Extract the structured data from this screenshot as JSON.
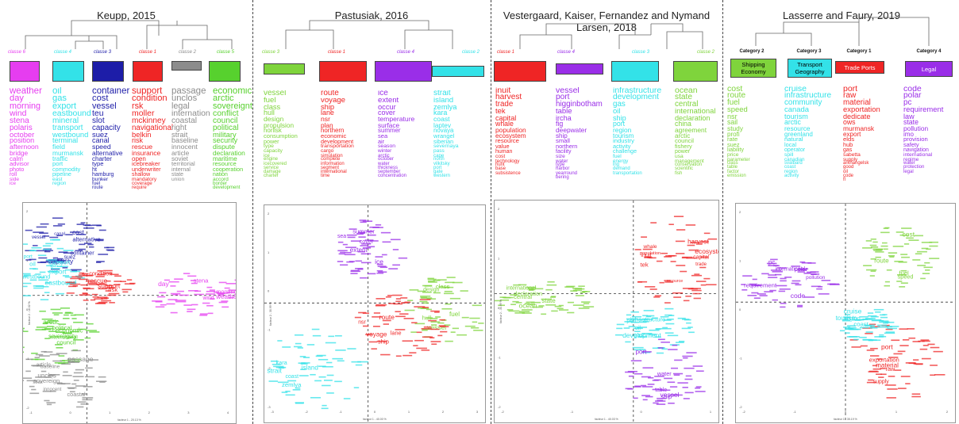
{
  "figure": {
    "panels": [
      {
        "title": "Keupp, 2015",
        "classes": [
          {
            "label": "classe 6",
            "color": "#e63df0",
            "pct": "",
            "words": [
              "weather",
              "day",
              "morning",
              "wind",
              "stena",
              "polaris",
              "october",
              "position",
              "afternoon",
              "bridge",
              "calm",
              "advisor",
              "photo",
              "roll",
              "side",
              "ice"
            ]
          },
          {
            "label": "classe 4",
            "color": "#33e2e8",
            "pct": "",
            "words": [
              "oil",
              "gas",
              "export",
              "eastbound",
              "mineral",
              "transport",
              "westbound",
              "terminal",
              "field",
              "murmansk",
              "traffic",
              "port",
              "commodity",
              "pipeline",
              "east",
              "region"
            ]
          },
          {
            "label": "classe 3",
            "color": "#1d1da8",
            "pct": "",
            "words": [
              "container",
              "cost",
              "vessel",
              "teu",
              "slot",
              "capacity",
              "suez",
              "canal",
              "speed",
              "alternative",
              "charter",
              "type",
              "ht",
              "hamburg",
              "bunker",
              "fuel",
              "route"
            ]
          },
          {
            "label": "classe 1",
            "color": "#ef2525",
            "pct": "",
            "words": [
              "support",
              "condition",
              "rsk",
              "moller",
              "mckinney",
              "navigational",
              "belkin",
              "risk",
              "rescue",
              "insurance",
              "open",
              "icebreaker",
              "underwriter",
              "shallow",
              "mandatory",
              "coverage",
              "require"
            ]
          },
          {
            "label": "classe 2",
            "color": "#8c8c8c",
            "pct": "",
            "words": [
              "passage",
              "unclos",
              "legal",
              "internation",
              "coastal",
              "right",
              "strait",
              "baseline",
              "innocent",
              "article",
              "soviet",
              "territorial",
              "internal",
              "state",
              "union"
            ]
          },
          {
            "label": "classe 5",
            "color": "#57d12e",
            "pct": "",
            "words": [
              "economic",
              "arctic",
              "sovereignt",
              "conflict",
              "council",
              "political",
              "military",
              "security",
              "dispute",
              "declaration",
              "maritime",
              "resource",
              "cooperation",
              "nation",
              "accord",
              "border",
              "development"
            ]
          }
        ],
        "axis": {
          "xlabel": "facteur 1 - 20.13 %",
          "ylabel": "facteur 2 - 18.02 %",
          "xticks": [
            "-1",
            "0",
            "1",
            "2",
            "3",
            "4"
          ],
          "yticks": [
            "2",
            "1",
            "0",
            "-1",
            "-2"
          ]
        },
        "clusters": [
          {
            "color": "#1d1da8",
            "words": [
              "capacity",
              "cost",
              "alternative",
              "container",
              "suez",
              "charter",
              "vessel",
              "canal"
            ]
          },
          {
            "color": "#33e2e8",
            "words": [
              "eastbound",
              "export",
              "oil",
              "westbound",
              "transport",
              "port",
              "gas"
            ]
          },
          {
            "color": "#ef2525",
            "words": [
              "support",
              "rescue",
              "risk",
              "condition"
            ]
          },
          {
            "color": "#e63df0",
            "words": [
              "day",
              "weather",
              "stena",
              "morning",
              "wind"
            ]
          },
          {
            "color": "#57d12e",
            "words": [
              "arctic",
              "economic",
              "council",
              "political",
              "sovereignty",
              "international"
            ]
          },
          {
            "color": "#8c8c8c",
            "words": [
              "passage",
              "unclos",
              "sovereign",
              "coastal",
              "article",
              "baseline",
              "innocent",
              "strait"
            ]
          }
        ]
      },
      {
        "title": "Pastusiak, 2016",
        "classes": [
          {
            "label": "classe 3",
            "color": "#7fd43c",
            "pct": "",
            "words": [
              "vessel",
              "fuel",
              "class",
              "hull",
              "design",
              "propulsion",
              "norilsk",
              "consumption",
              "power",
              "type",
              "capacity",
              "ice",
              "engine",
              "icecovered",
              "service",
              "damage",
              "charter"
            ]
          },
          {
            "label": "classe 1",
            "color": "#ef2525",
            "pct": "",
            "words": [
              "route",
              "voyage",
              "ship",
              "lane",
              "nsr",
              "plan",
              "northern",
              "economic",
              "development",
              "transportation",
              "cargo",
              "simulation",
              "complete",
              "information",
              "segment",
              "international",
              "time"
            ]
          },
          {
            "label": "classe 4",
            "color": "#9a2ee8",
            "pct": "",
            "words": [
              "ice",
              "extent",
              "occur",
              "cover",
              "temperature",
              "surface",
              "summer",
              "sea",
              "air",
              "season",
              "winter",
              "arctic",
              "october",
              "water",
              "thickness",
              "september",
              "concentration"
            ]
          },
          {
            "label": "classe 2",
            "color": "#33e2e8",
            "pct": "",
            "words": [
              "strait",
              "island",
              "zemlya",
              "kara",
              "coast",
              "laptev",
              "novaya",
              "wrangel",
              "siberian",
              "severnaya",
              "pass",
              "cape",
              "north",
              "vilkitsky",
              "port",
              "gate",
              "western"
            ]
          }
        ],
        "axis": {
          "xlabel": "facteur 1 - 40.00 %",
          "ylabel": "facteur 2 - 30.99 %",
          "xticks": [
            "-3",
            "-2",
            "-1",
            "0",
            "1",
            "2",
            "3"
          ],
          "yticks": [
            "2",
            "1",
            "0",
            "-1",
            "-2",
            "-3"
          ]
        },
        "clusters": [
          {
            "color": "#9a2ee8",
            "words": [
              "ice",
              "extent",
              "summer",
              "cover",
              "sea"
            ]
          },
          {
            "color": "#7fd43c",
            "words": [
              "vessel",
              "fuel",
              "class",
              "hull",
              "design"
            ]
          },
          {
            "color": "#ef2525",
            "words": [
              "route",
              "voyage",
              "ship",
              "lane",
              "nsr"
            ]
          },
          {
            "color": "#33e2e8",
            "words": [
              "strait",
              "island",
              "zemlya",
              "kara",
              "coast"
            ]
          }
        ]
      },
      {
        "title": "Vestergaard, Kaiser, Fernandez and Nymand Larsen, 2018",
        "classes": [
          {
            "label": "classe 1",
            "color": "#ef2525",
            "pct": "",
            "words": [
              "inuit",
              "harvest",
              "trade",
              "tek",
              "capital",
              "whale",
              "population",
              "ecosystem",
              "resource",
              "value",
              "human",
              "cost",
              "technology",
              "hunt",
              "base",
              "subsistence"
            ]
          },
          {
            "label": "classe 4",
            "color": "#9a2ee8",
            "pct": "",
            "words": [
              "vessel",
              "port",
              "higginbotham",
              "table",
              "ircha",
              "fig",
              "deepwater",
              "ship",
              "small",
              "northern",
              "facility",
              "size",
              "water",
              "type",
              "harbor",
              "yearround",
              "bering"
            ]
          },
          {
            "label": "classe 3",
            "color": "#33e2e8",
            "pct": "",
            "words": [
              "infrastructure",
              "development",
              "gas",
              "oil",
              "ship",
              "port",
              "region",
              "tourism",
              "industry",
              "activity",
              "challenge",
              "fuel",
              "energy",
              "lng",
              "demand",
              "transportation"
            ]
          },
          {
            "label": "classe 2",
            "color": "#7fd43c",
            "pct": "",
            "words": [
              "ocean",
              "state",
              "central",
              "international",
              "declaration",
              "china",
              "agreement",
              "arctic",
              "council",
              "fishery",
              "power",
              "usa",
              "management",
              "conservation",
              "scientific",
              "fish"
            ]
          }
        ],
        "axis": {
          "xlabel": "facteur 1 - 40.03 %",
          "ylabel": "facteur 2 - 30.99 %",
          "xticks": [
            "-2",
            "-1",
            "0",
            "1"
          ],
          "yticks": [
            "2",
            "1",
            "0",
            "-1",
            "-2"
          ]
        },
        "clusters": [
          {
            "color": "#ef2525",
            "words": [
              "ecosystem",
              "harvest",
              "tek",
              "inuit",
              "capital",
              "whale",
              "trade",
              "population",
              "resource"
            ]
          },
          {
            "color": "#7fd43c",
            "words": [
              "ocean",
              "state",
              "central",
              "declaration",
              "international"
            ]
          },
          {
            "color": "#33e2e8",
            "words": [
              "development",
              "gas",
              "infrastructure",
              "oil",
              "port"
            ]
          },
          {
            "color": "#9a2ee8",
            "words": [
              "vessel",
              "port",
              "ship",
              "water",
              "table"
            ]
          }
        ]
      },
      {
        "title": "Lasserre and Faury, 2019",
        "classes": [
          {
            "label": "Category 2",
            "box": "Shipping Economy",
            "color": "#7fd43c",
            "pct": "",
            "words": [
              "cost",
              "route",
              "fuel",
              "speed",
              "nsr",
              "sail",
              "study",
              "profi",
              "rate",
              "suez",
              "liability",
              "price",
              "parameter",
              "class",
              "table",
              "factor",
              "emission"
            ]
          },
          {
            "label": "Category 3",
            "box": "Transport Geography",
            "color": "#33e2e8",
            "pct": "",
            "words": [
              "cruise",
              "infrastructure",
              "community",
              "canada",
              "tourism",
              "arctic",
              "resource",
              "greenland",
              "natural",
              "local",
              "operator",
              "spill",
              "canadian",
              "svalbard",
              "coast",
              "region",
              "activity"
            ]
          },
          {
            "label": "Category 1",
            "box": "Trade Ports",
            "color": "#ef2525",
            "pct": "",
            "words": [
              "port",
              "raw",
              "material",
              "exportation",
              "dedicate",
              "ows",
              "murmansk",
              "export",
              "elds",
              "hub",
              "gas",
              "sabetta",
              "supply",
              "arkhangelsk",
              "good",
              "oil",
              "code",
              "fl"
            ]
          },
          {
            "label": "Category 4",
            "box": "Legal",
            "color": "#9a2ee8",
            "pct": "",
            "words": [
              "code",
              "polar",
              "pc",
              "requirement",
              "law",
              "state",
              "pollution",
              "imo",
              "provision",
              "safety",
              "navigation",
              "international",
              "regime",
              "water",
              "protection",
              "legal"
            ]
          }
        ],
        "axis": {
          "xlabel": "facteur 1 - 35.19 %",
          "ylabel": "",
          "xticks": [
            "-2",
            "-1",
            "0",
            "1",
            "2"
          ],
          "yticks": [
            "2",
            "1",
            "0",
            "-1",
            "-2"
          ]
        },
        "clusters": [
          {
            "color": "#7fd43c",
            "words": [
              "cost",
              "route",
              "fuel",
              "speed"
            ]
          },
          {
            "color": "#9a2ee8",
            "words": [
              "code",
              "pc",
              "requirement",
              "polar",
              "international",
              "pollution"
            ]
          },
          {
            "color": "#ef2525",
            "words": [
              "port",
              "material",
              "exportation",
              "raw",
              "supply"
            ]
          },
          {
            "color": "#33e2e8",
            "words": [
              "cruise",
              "tourism",
              "coast",
              "region"
            ]
          }
        ]
      }
    ]
  },
  "chart_data": {
    "type": "scatter",
    "panels": [
      {
        "title": "Keupp, 2015",
        "xlabel": "facteur 1 - 20.13 %",
        "ylabel": "facteur 2 - 18.02 %",
        "series": [
          "classe 1",
          "classe 2",
          "classe 3",
          "classe 4",
          "classe 5",
          "classe 6"
        ]
      },
      {
        "title": "Pastusiak, 2016",
        "xlabel": "facteur 1 - 40.00 %",
        "ylabel": "facteur 2 - 30.99 %",
        "series": [
          "classe 1",
          "classe 2",
          "classe 3",
          "classe 4"
        ]
      },
      {
        "title": "Vestergaard, Kaiser, Fernandez and Nymand Larsen, 2018",
        "xlabel": "facteur 1 - 40.03 %",
        "ylabel": "facteur 2 - 30.99 %",
        "series": [
          "classe 1",
          "classe 2",
          "classe 3",
          "classe 4"
        ]
      },
      {
        "title": "Lasserre and Faury, 2019",
        "xlabel": "facteur 1 - 35.19 %",
        "series": [
          "Category 1",
          "Category 2",
          "Category 3",
          "Category 4"
        ]
      }
    ]
  }
}
